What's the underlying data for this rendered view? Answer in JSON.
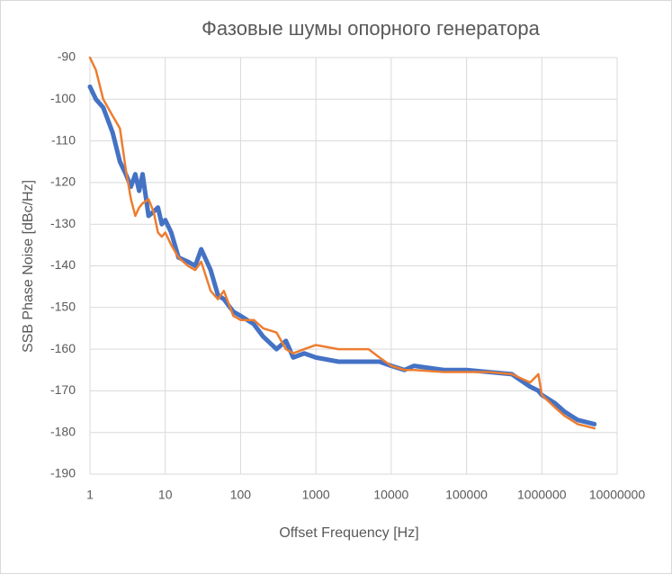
{
  "chart_data": {
    "type": "line",
    "title": "Фазовые шумы опорного генератора",
    "x_label": "Offset Frequency [Hz]",
    "y_label": "SSB Phase Noise [dBc/Hz]",
    "x": [
      1,
      1.2,
      1.5,
      2,
      2.5,
      3,
      3.5,
      4,
      4.5,
      5,
      6,
      7,
      8,
      9,
      10,
      12,
      15,
      20,
      25,
      30,
      40,
      50,
      60,
      80,
      100,
      150,
      200,
      300,
      400,
      500,
      700,
      1000,
      2000,
      3000,
      5000,
      7000,
      10000,
      15000,
      20000,
      50000,
      100000,
      200000,
      400000,
      700000,
      900000,
      1000000,
      1500000,
      2000000,
      3000000,
      5000000
    ],
    "series": [
      {
        "color": "#4472c4",
        "values": [
          -97,
          -100,
          -102,
          -108,
          -115,
          -118,
          -121,
          -118,
          -122,
          -118,
          -128,
          -127,
          -126,
          -130,
          -129,
          -132,
          -138,
          -139,
          -140,
          -136,
          -141,
          -147,
          -148,
          -151,
          -152,
          -154,
          -157,
          -160,
          -158,
          -162,
          -161,
          -162,
          -163,
          -163,
          -163,
          -163,
          -164,
          -165,
          -164,
          -165,
          -165,
          -165.5,
          -166,
          -169,
          -170,
          -171,
          -173,
          -175,
          -177,
          -178
        ]
      },
      {
        "color": "#ed7d31",
        "values": [
          -90,
          -93,
          -100,
          -104,
          -107,
          -117,
          -124,
          -128,
          -126,
          -125,
          -124,
          -127,
          -132,
          -133,
          -132,
          -135,
          -138,
          -140,
          -141,
          -139,
          -146,
          -148,
          -146,
          -152,
          -153,
          -153,
          -155,
          -156,
          -160,
          -161,
          -160,
          -159,
          -160,
          -160,
          -160,
          -162,
          -164,
          -165,
          -165,
          -165.5,
          -165.5,
          -165.5,
          -166,
          -168,
          -166,
          -171,
          -174,
          -176,
          -178,
          -179
        ]
      }
    ],
    "log_x": true,
    "xlim": [
      1,
      10000000
    ],
    "xticks": [
      1,
      10,
      100,
      1000,
      10000,
      100000,
      1000000,
      10000000
    ],
    "ylim": [
      -190,
      -90
    ],
    "yticks": [
      -190,
      -180,
      -170,
      -160,
      -150,
      -140,
      -130,
      -120,
      -110,
      -100,
      -90
    ],
    "grid": true
  }
}
